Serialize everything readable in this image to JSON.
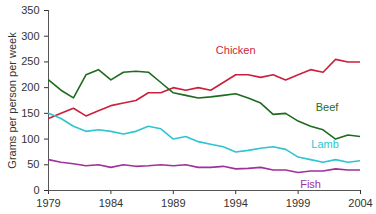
{
  "chart_data": {
    "type": "line",
    "y_label": "Grams per person per week",
    "x": [
      1979,
      1980,
      1981,
      1982,
      1983,
      1984,
      1985,
      1986,
      1987,
      1988,
      1989,
      1990,
      1991,
      1992,
      1993,
      1994,
      1995,
      1996,
      1997,
      1998,
      1999,
      2000,
      2001,
      2002,
      2003,
      2004
    ],
    "series": [
      {
        "name": "Chicken",
        "color": "#cc1f3c",
        "values": [
          140,
          150,
          160,
          145,
          155,
          165,
          170,
          175,
          190,
          190,
          200,
          195,
          200,
          195,
          210,
          225,
          225,
          220,
          225,
          215,
          225,
          235,
          230,
          255,
          250,
          250
        ]
      },
      {
        "name": "Beef",
        "color": "#1e6b1e",
        "values": [
          215,
          195,
          180,
          225,
          235,
          215,
          230,
          232,
          230,
          210,
          190,
          185,
          180,
          182,
          185,
          188,
          180,
          170,
          148,
          150,
          135,
          125,
          118,
          100,
          108,
          105
        ]
      },
      {
        "name": "Lamb",
        "color": "#2ec4d0",
        "values": [
          150,
          140,
          125,
          115,
          118,
          115,
          110,
          115,
          125,
          120,
          100,
          105,
          95,
          90,
          85,
          75,
          78,
          82,
          85,
          80,
          65,
          60,
          55,
          60,
          55,
          58
        ]
      },
      {
        "name": "Fish",
        "color": "#a0309a",
        "values": [
          60,
          55,
          52,
          48,
          50,
          45,
          50,
          47,
          48,
          50,
          48,
          50,
          45,
          45,
          47,
          42,
          43,
          45,
          40,
          40,
          35,
          38,
          38,
          42,
          40,
          40
        ]
      }
    ],
    "xlim": [
      1979,
      2004
    ],
    "xticks": [
      1979,
      1984,
      1989,
      1994,
      1999,
      2004
    ],
    "ylim": [
      0,
      350
    ],
    "yticks": [
      0,
      50,
      100,
      150,
      200,
      250,
      300,
      350
    ],
    "grid": false
  }
}
